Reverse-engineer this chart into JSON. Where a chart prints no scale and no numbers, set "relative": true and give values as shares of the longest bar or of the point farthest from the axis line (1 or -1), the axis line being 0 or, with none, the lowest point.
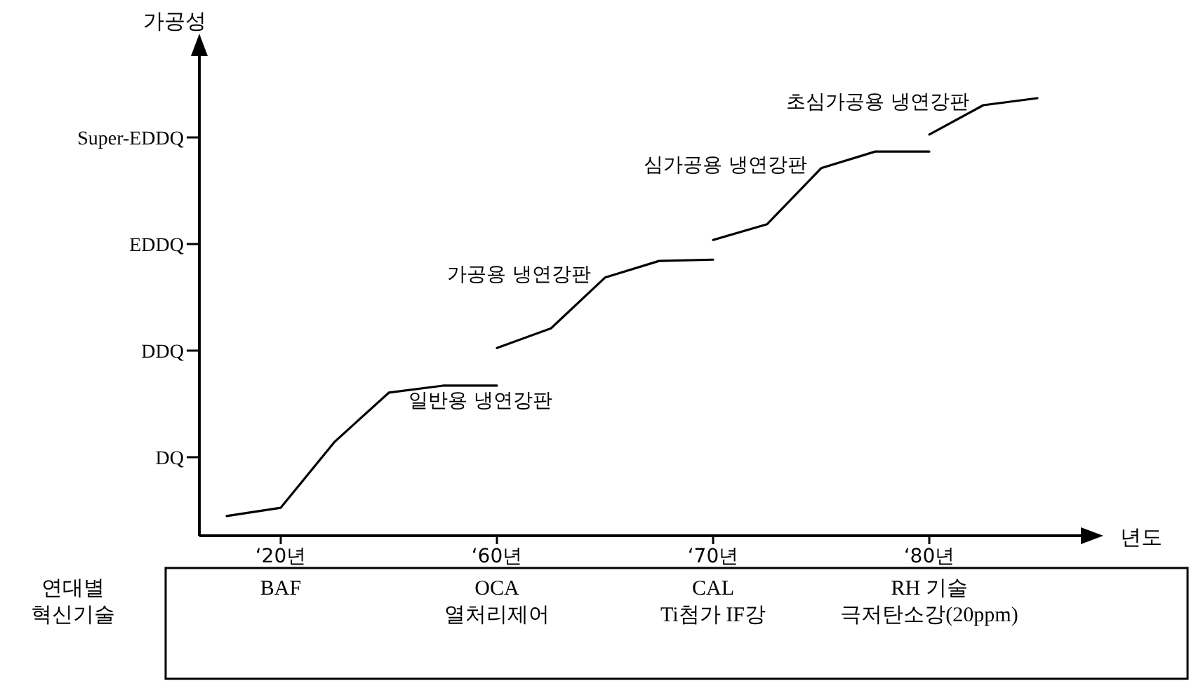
{
  "chart_data": {
    "type": "line",
    "xlabel": "년도",
    "ylabel": "가공성",
    "relative": true,
    "categories": [
      null,
      "‘20년",
      null,
      null,
      null,
      "‘60년",
      null,
      null,
      null,
      "‘70년",
      null,
      null,
      null,
      "‘80년",
      null,
      null
    ],
    "series": [
      {
        "name": "일반용 냉연강판",
        "color": "#000000",
        "values": [
          0.045,
          0.064,
          0.215,
          0.327,
          0.343,
          0.343,
          null,
          null,
          null,
          null,
          null,
          null,
          null,
          null,
          null,
          null
        ]
      },
      {
        "name": "가공용 냉연강판",
        "color": "#000000",
        "values": [
          null,
          null,
          null,
          null,
          null,
          0.429,
          0.474,
          0.59,
          0.628,
          0.631,
          null,
          null,
          null,
          null,
          null,
          null
        ]
      },
      {
        "name": "심가공용 냉연강판",
        "color": "#000000",
        "values": [
          null,
          null,
          null,
          null,
          null,
          null,
          null,
          null,
          null,
          0.676,
          0.712,
          0.84,
          0.878,
          0.878,
          null,
          null
        ]
      },
      {
        "name": "초심가공용 냉연강판",
        "color": "#000000",
        "values": [
          null,
          null,
          null,
          null,
          null,
          null,
          null,
          null,
          null,
          null,
          null,
          null,
          null,
          0.917,
          0.984,
          1
        ]
      }
    ],
    "annotations": [
      "DQ",
      "DDQ",
      "EDDQ",
      "Super-EDDQ",
      "연대별\n혁신기술",
      "BAF",
      "OCA\n열처리제어",
      "CAL\nTi첨가 IF강",
      "RH 기술\n극저탄소강(20ppm)"
    ]
  }
}
